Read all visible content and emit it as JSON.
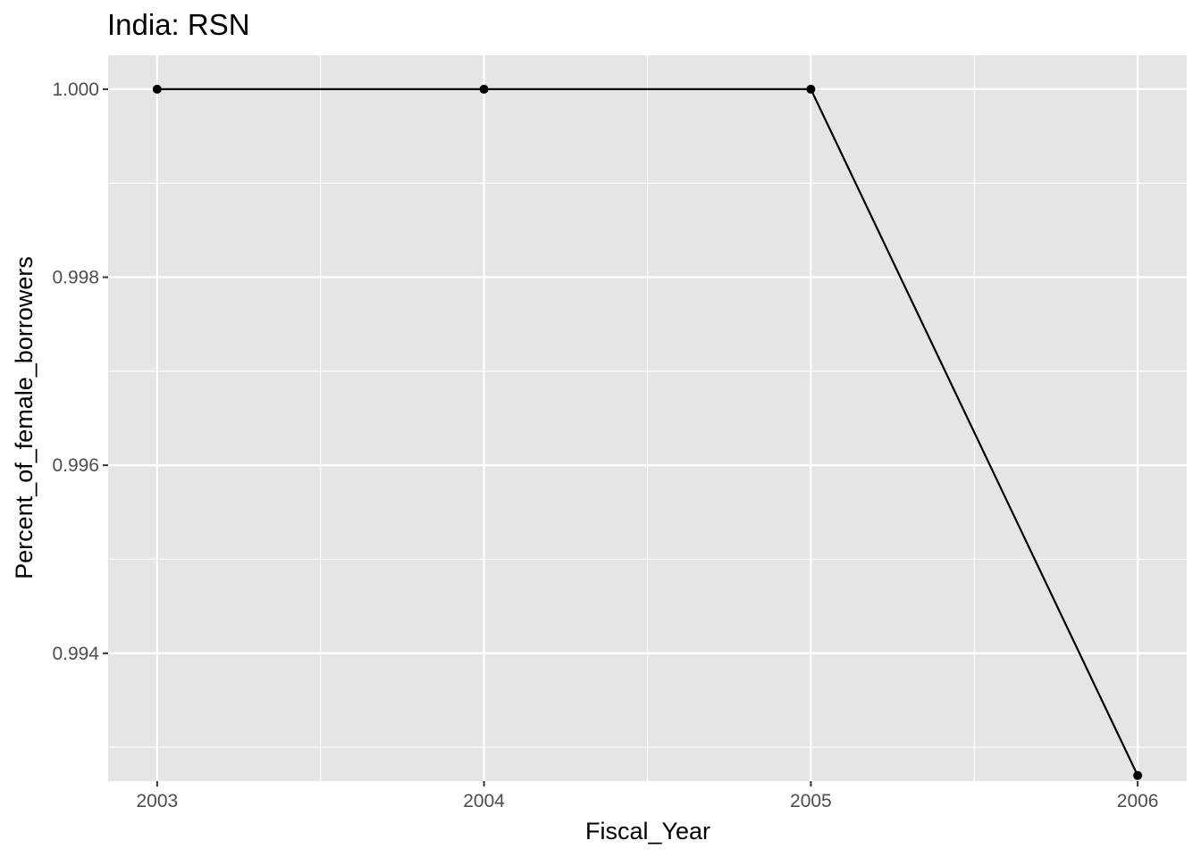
{
  "chart_data": {
    "type": "line",
    "title": "India:  RSN",
    "xlabel": "Fiscal_Year",
    "ylabel": "Percent_of_female_borrowers",
    "x": [
      2003,
      2004,
      2005,
      2006
    ],
    "series": [
      {
        "values": [
          1.0,
          1.0,
          1.0,
          0.9927
        ]
      }
    ],
    "xlim": [
      2002.85,
      2006.15
    ],
    "ylim": [
      0.99264,
      1.00036
    ],
    "x_ticks": [
      2003,
      2004,
      2005,
      2006
    ],
    "x_tick_labels": [
      "2003",
      "2004",
      "2005",
      "2006"
    ],
    "x_minor_ticks": [
      2003.5,
      2004.5,
      2005.5
    ],
    "y_ticks": [
      0.994,
      0.996,
      0.998,
      1.0
    ],
    "y_tick_labels": [
      "0.994",
      "0.996",
      "0.998",
      "1.000"
    ],
    "y_minor_ticks": [
      0.993,
      0.995,
      0.997,
      0.999
    ],
    "grid": true,
    "legend": "none",
    "colors": {
      "panel_background": "#e5e5e5",
      "grid_line": "#ffffff",
      "series_line": "#000000",
      "tick_label": "#4d4d4d",
      "tick_mark": "#333333"
    }
  }
}
